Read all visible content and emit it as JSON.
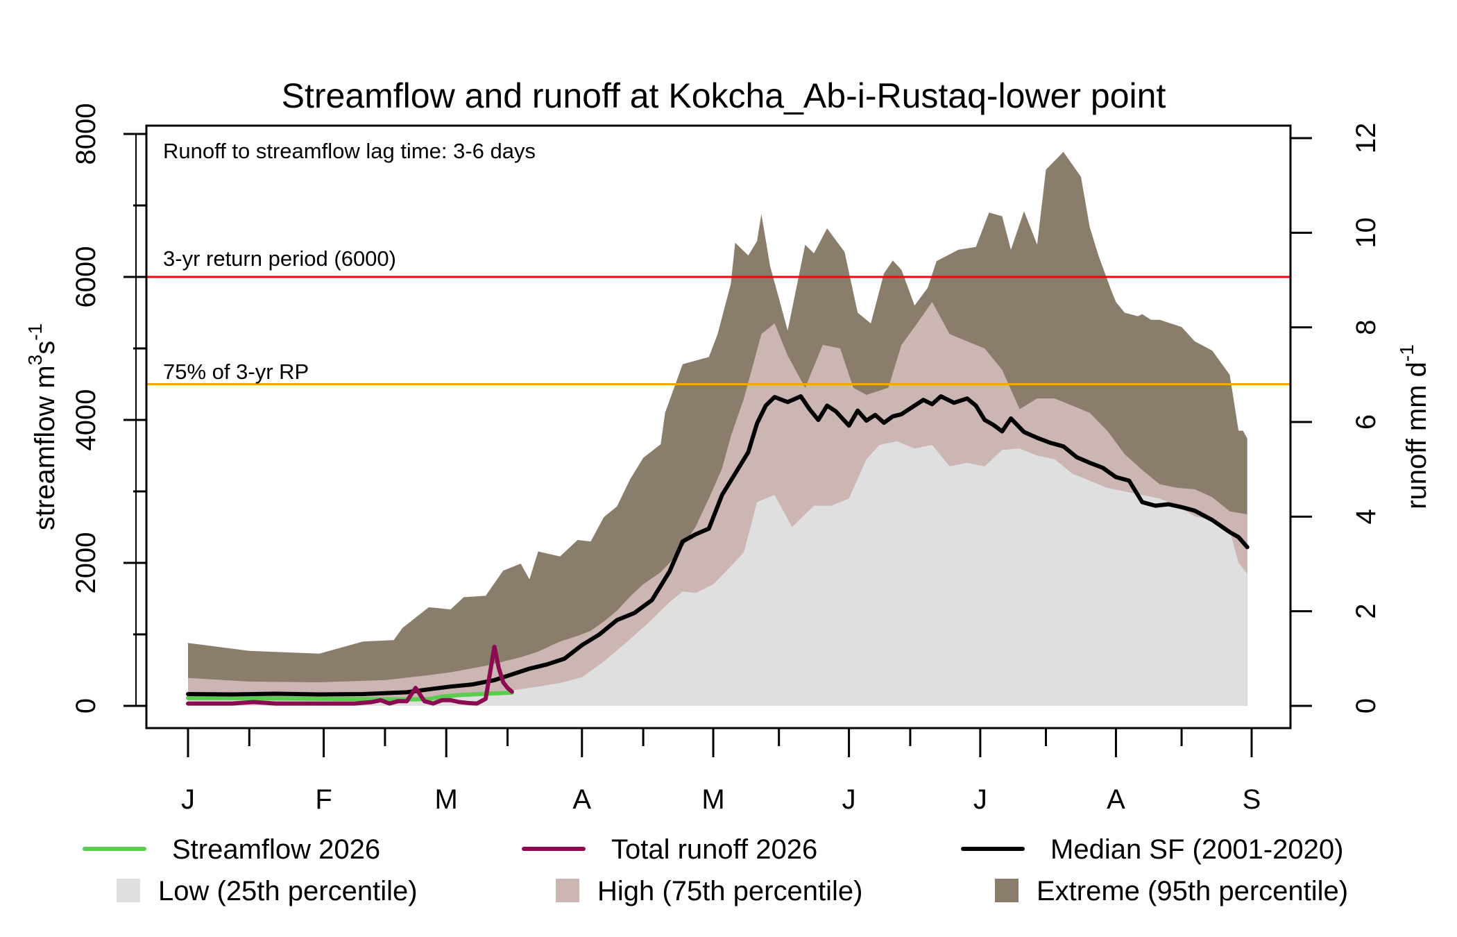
{
  "chart_data": {
    "type": "area",
    "title": "Streamflow and runoff at Kokcha_Ab-i-Rustaq-lower point",
    "annotation": "Runoff to streamflow lag time: 3-6 days",
    "ylabel_left": "streamflow m",
    "ylabel_left_sup1": "3",
    "ylabel_left_mid": "s",
    "ylabel_left_sup2": "-1",
    "ylabel_right": "runoff mm d",
    "ylabel_right_sup": "-1",
    "ylim_left": [
      0,
      8000
    ],
    "ylim_right": [
      0,
      12
    ],
    "x_unit": "day of year (0 = Jan 1)",
    "xlim": [
      0,
      243
    ],
    "left_ticks": [
      0,
      2000,
      4000,
      6000,
      8000
    ],
    "right_ticks": [
      0,
      2,
      4,
      6,
      8,
      10,
      12
    ],
    "month_ticks": [
      {
        "label": "J",
        "day": 0
      },
      {
        "label": "F",
        "day": 31
      },
      {
        "label": "M",
        "day": 59
      },
      {
        "label": "A",
        "day": 90
      },
      {
        "label": "M",
        "day": 120
      },
      {
        "label": "J",
        "day": 151
      },
      {
        "label": "J",
        "day": 181
      },
      {
        "label": "A",
        "day": 212
      },
      {
        "label": "S",
        "day": 243
      }
    ],
    "minor_ticks": [
      14,
      45,
      73,
      104,
      135,
      165,
      196,
      227
    ],
    "hlines": [
      {
        "name": "3-yr return period",
        "value": 6000,
        "label": "3-yr return period (6000)",
        "color": "#ff0000"
      },
      {
        "name": "75% of 3-yr RP",
        "value": 4500,
        "label": "75% of 3-yr RP",
        "color": "#ffa500"
      }
    ],
    "colors": {
      "low": "#dfdfdf",
      "high": "#cbb6b3",
      "extreme": "#8a7d6c",
      "streamflow": "#5ccc50",
      "runoff": "#8b0a50",
      "median": "#000000"
    },
    "series": [
      {
        "name": "Extreme (95th percentile)",
        "kind": "band",
        "x": [
          0,
          14,
          30,
          40,
          47,
          49,
          55,
          60,
          63,
          68,
          72,
          76,
          78,
          80,
          85,
          89,
          92,
          95,
          98,
          101,
          104,
          108,
          109,
          113,
          119,
          121,
          124,
          125,
          128,
          130,
          131,
          133,
          137,
          141,
          143,
          146,
          150,
          153,
          156,
          159,
          161,
          163,
          166,
          169,
          171,
          176,
          180,
          183,
          186,
          188,
          191,
          194,
          196,
          200,
          204,
          206,
          208,
          211,
          212,
          214,
          217,
          218,
          220,
          222,
          227,
          230,
          234,
          238,
          240,
          241,
          242
        ],
        "values": [
          880,
          770,
          730,
          900,
          920,
          1090,
          1380,
          1350,
          1520,
          1540,
          1890,
          1990,
          1770,
          2160,
          2090,
          2320,
          2300,
          2640,
          2790,
          3170,
          3470,
          3660,
          4100,
          4780,
          4880,
          5200,
          5900,
          6480,
          6300,
          6500,
          6880,
          6150,
          5250,
          6450,
          6330,
          6680,
          6350,
          5500,
          5350,
          6050,
          6230,
          6100,
          5600,
          5850,
          6220,
          6380,
          6420,
          6900,
          6850,
          6380,
          6920,
          6450,
          7500,
          7750,
          7400,
          6700,
          6300,
          5800,
          5650,
          5500,
          5450,
          5480,
          5400,
          5400,
          5300,
          5100,
          4970,
          4630,
          3850,
          3850,
          3740
        ]
      },
      {
        "name": "High (75th percentile)",
        "kind": "band",
        "x": [
          0,
          14,
          30,
          45,
          55,
          60,
          68,
          72,
          76,
          80,
          85,
          89,
          92,
          95,
          98,
          101,
          104,
          108,
          112,
          116,
          119,
          122,
          124,
          127,
          131,
          134,
          137,
          141,
          145,
          149,
          152,
          155,
          160,
          163,
          166,
          170,
          174,
          178,
          182,
          186,
          190,
          194,
          198,
          202,
          206,
          210,
          214,
          218,
          222,
          226,
          230,
          234,
          238,
          242
        ],
        "values": [
          390,
          340,
          330,
          360,
          430,
          470,
          560,
          620,
          680,
          760,
          900,
          980,
          1050,
          1180,
          1330,
          1530,
          1700,
          1870,
          2130,
          2510,
          2900,
          3320,
          3770,
          4300,
          5200,
          5350,
          4900,
          4450,
          5050,
          5000,
          4450,
          4350,
          4450,
          5050,
          5300,
          5650,
          5200,
          5100,
          5000,
          4700,
          4150,
          4300,
          4300,
          4200,
          4100,
          3850,
          3520,
          3300,
          3100,
          3050,
          3030,
          2920,
          2720,
          2680
        ]
      },
      {
        "name": "Median SF (2001-2020)",
        "kind": "line",
        "x": [
          0,
          10,
          20,
          30,
          40,
          50,
          56,
          60,
          65,
          70,
          74,
          78,
          82,
          86,
          90,
          94,
          98,
          102,
          106,
          110,
          113,
          116,
          119,
          122,
          125,
          128,
          130,
          132,
          134,
          137,
          140,
          142,
          144,
          146,
          148,
          151,
          153,
          155,
          157,
          159,
          161,
          163,
          166,
          168,
          170,
          172,
          175,
          178,
          180,
          182,
          184,
          186,
          188,
          191,
          194,
          197,
          200,
          203,
          206,
          209,
          212,
          215,
          218,
          221,
          224,
          227,
          230,
          234,
          238,
          240,
          242
        ],
        "values": [
          165,
          160,
          170,
          160,
          165,
          190,
          240,
          270,
          300,
          360,
          440,
          520,
          580,
          660,
          850,
          1000,
          1200,
          1300,
          1480,
          1880,
          2300,
          2400,
          2480,
          2950,
          3250,
          3550,
          3950,
          4200,
          4320,
          4250,
          4330,
          4150,
          4000,
          4200,
          4120,
          3920,
          4130,
          3990,
          4070,
          3960,
          4050,
          4080,
          4200,
          4280,
          4220,
          4330,
          4240,
          4300,
          4200,
          4000,
          3930,
          3840,
          4020,
          3830,
          3750,
          3680,
          3630,
          3480,
          3400,
          3330,
          3200,
          3150,
          2850,
          2800,
          2820,
          2780,
          2730,
          2600,
          2430,
          2360,
          2220
        ]
      },
      {
        "name": "Low (25th percentile)",
        "kind": "band",
        "x": [
          0,
          30,
          50,
          60,
          70,
          80,
          85,
          90,
          95,
          100,
          105,
          110,
          113,
          116,
          120,
          124,
          127,
          130,
          134,
          138,
          143,
          147,
          151,
          155,
          158,
          162,
          166,
          170,
          174,
          178,
          182,
          186,
          190,
          194,
          198,
          202,
          206,
          210,
          214,
          218,
          222,
          226,
          230,
          234,
          238,
          240,
          242
        ],
        "values": [
          80,
          70,
          85,
          120,
          180,
          270,
          320,
          400,
          620,
          880,
          1150,
          1450,
          1600,
          1580,
          1700,
          1950,
          2150,
          2850,
          2950,
          2500,
          2800,
          2800,
          2900,
          3450,
          3650,
          3700,
          3600,
          3650,
          3350,
          3400,
          3350,
          3580,
          3600,
          3500,
          3450,
          3250,
          3150,
          3050,
          3000,
          2950,
          2900,
          2800,
          2650,
          2600,
          2450,
          2000,
          1850
        ]
      },
      {
        "name": "Streamflow 2026",
        "kind": "line",
        "x": [
          0,
          10,
          20,
          30,
          40,
          50,
          55,
          58,
          62,
          65,
          68,
          70,
          72,
          74
        ],
        "values": [
          110,
          110,
          105,
          100,
          95,
          90,
          95,
          130,
          150,
          160,
          170,
          175,
          180,
          185
        ]
      },
      {
        "name": "Total runoff 2026",
        "kind": "line",
        "axis": "right",
        "x": [
          0,
          10,
          15,
          20,
          25,
          30,
          38,
          42,
          44,
          46,
          48,
          50,
          52,
          54,
          56,
          58,
          60,
          62,
          64,
          66,
          68,
          69,
          70,
          71,
          72,
          73,
          74
        ],
        "values": [
          0.05,
          0.05,
          0.08,
          0.05,
          0.05,
          0.05,
          0.05,
          0.08,
          0.12,
          0.05,
          0.1,
          0.1,
          0.38,
          0.1,
          0.05,
          0.12,
          0.12,
          0.08,
          0.06,
          0.05,
          0.15,
          0.7,
          1.25,
          0.8,
          0.5,
          0.38,
          0.3
        ]
      }
    ],
    "legend": {
      "placement": "bottom",
      "entries": [
        {
          "label": "Streamflow 2026",
          "type": "line",
          "color": "#5ccc50"
        },
        {
          "label": "Total runoff 2026",
          "type": "line",
          "color": "#8b0a50"
        },
        {
          "label": "Median SF (2001-2020)",
          "type": "line",
          "color": "#000000"
        },
        {
          "label": "Low (25th percentile)",
          "type": "box",
          "color": "#dfdfdf"
        },
        {
          "label": "High (75th percentile)",
          "type": "box",
          "color": "#cbb6b3"
        },
        {
          "label": "Extreme (95th percentile)",
          "type": "box",
          "color": "#8a7d6c"
        }
      ]
    }
  }
}
